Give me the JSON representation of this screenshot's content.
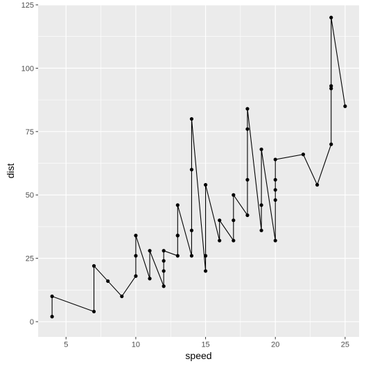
{
  "chart_data": {
    "type": "line",
    "xlabel": "speed",
    "ylabel": "dist",
    "xlim": [
      3.0,
      26.0
    ],
    "ylim": [
      -6.0,
      125.0
    ],
    "x_ticks": [
      5,
      10,
      15,
      20,
      25
    ],
    "y_ticks": [
      0,
      25,
      50,
      75,
      100,
      125
    ],
    "grid": true,
    "series": [
      {
        "x": [
          4,
          4,
          7,
          7,
          8,
          9,
          10,
          10,
          10,
          11,
          11,
          12,
          12,
          12,
          12,
          13,
          13,
          13,
          13,
          14,
          14,
          14,
          14,
          15,
          15,
          15,
          16,
          16,
          17,
          17,
          17,
          18,
          18,
          18,
          18,
          19,
          19,
          19,
          20,
          20,
          20,
          20,
          20,
          22,
          23,
          24,
          24,
          24,
          24,
          25
        ],
        "y": [
          2,
          10,
          4,
          22,
          16,
          10,
          18,
          26,
          34,
          17,
          28,
          14,
          20,
          24,
          28,
          26,
          34,
          34,
          46,
          26,
          36,
          60,
          80,
          20,
          26,
          54,
          32,
          40,
          32,
          40,
          50,
          42,
          56,
          76,
          84,
          36,
          46,
          68,
          32,
          48,
          52,
          56,
          64,
          66,
          54,
          70,
          92,
          93,
          120,
          85
        ]
      }
    ]
  },
  "colors": {
    "panel": "#ebebeb",
    "grid_major": "#ffffff",
    "line": "#000000",
    "point": "#000000",
    "tick_text": "#4d4d4d",
    "tick_mark": "#333333"
  }
}
